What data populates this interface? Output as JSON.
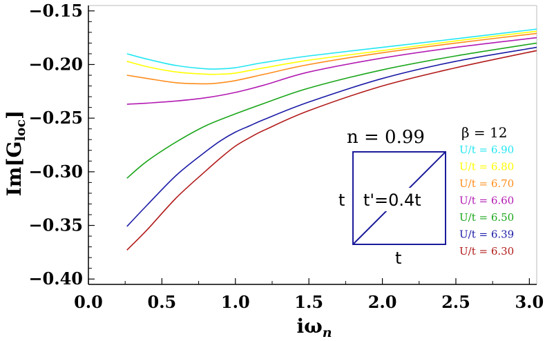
{
  "chart_data": {
    "type": "line",
    "xlabel": "iω",
    "xlabel_sub": "n",
    "ylabel": "Im[G",
    "ylabel_sub": "loc",
    "ylabel_close": "]",
    "xlim": [
      0.0,
      3.05
    ],
    "ylim": [
      -0.405,
      -0.145
    ],
    "xticks": [
      {
        "value": 0.0,
        "label": "0.0"
      },
      {
        "value": 0.5,
        "label": "0.5"
      },
      {
        "value": 1.0,
        "label": "1.0"
      },
      {
        "value": 1.5,
        "label": "1.5"
      },
      {
        "value": 2.0,
        "label": "2.0"
      },
      {
        "value": 2.5,
        "label": "2.5"
      },
      {
        "value": 3.0,
        "label": "3.0"
      }
    ],
    "yticks": [
      {
        "value": -0.15,
        "label": "−0.15"
      },
      {
        "value": -0.2,
        "label": "−0.20"
      },
      {
        "value": -0.25,
        "label": "−0.25"
      },
      {
        "value": -0.3,
        "label": "−0.30"
      },
      {
        "value": -0.35,
        "label": "−0.35"
      },
      {
        "value": -0.4,
        "label": "−0.40"
      }
    ],
    "grid": false,
    "legend_position": "right",
    "legend_title": "β = 12",
    "series": [
      {
        "name": "U/t = 6.90",
        "color": "#22e6f2",
        "x": [
          0.262,
          0.4,
          0.6,
          0.8,
          0.9,
          1.0,
          1.2,
          1.5,
          2.0,
          2.5,
          3.05
        ],
        "y": [
          -0.19,
          -0.195,
          -0.201,
          -0.204,
          -0.204,
          -0.203,
          -0.198,
          -0.192,
          -0.184,
          -0.176,
          -0.167
        ]
      },
      {
        "name": "U/t = 6.80",
        "color": "#ffff00",
        "x": [
          0.262,
          0.4,
          0.6,
          0.8,
          0.9,
          1.0,
          1.2,
          1.5,
          2.0,
          2.5,
          3.05
        ],
        "y": [
          -0.197,
          -0.202,
          -0.207,
          -0.209,
          -0.209,
          -0.208,
          -0.203,
          -0.196,
          -0.187,
          -0.178,
          -0.169
        ]
      },
      {
        "name": "U/t = 6.70",
        "color": "#ff8c1a",
        "x": [
          0.262,
          0.4,
          0.6,
          0.8,
          0.9,
          1.0,
          1.2,
          1.5,
          2.0,
          2.5,
          3.05
        ],
        "y": [
          -0.21,
          -0.213,
          -0.217,
          -0.218,
          -0.217,
          -0.215,
          -0.209,
          -0.2,
          -0.189,
          -0.18,
          -0.171
        ]
      },
      {
        "name": "U/t = 6.60",
        "color": "#b21ab2",
        "x": [
          0.262,
          0.4,
          0.6,
          0.8,
          1.0,
          1.2,
          1.5,
          2.0,
          2.5,
          3.05
        ],
        "y": [
          -0.237,
          -0.236,
          -0.234,
          -0.231,
          -0.226,
          -0.219,
          -0.207,
          -0.194,
          -0.184,
          -0.175
        ]
      },
      {
        "name": "U/t = 6.50",
        "color": "#1aa61a",
        "x": [
          0.262,
          0.4,
          0.6,
          0.8,
          1.0,
          1.2,
          1.5,
          2.0,
          2.5,
          3.05
        ],
        "y": [
          -0.306,
          -0.29,
          -0.272,
          -0.257,
          -0.246,
          -0.236,
          -0.222,
          -0.205,
          -0.192,
          -0.18
        ]
      },
      {
        "name": "U/t = 6.39",
        "color": "#1a1aa6",
        "x": [
          0.262,
          0.4,
          0.6,
          0.8,
          0.9,
          1.0,
          1.1,
          1.2,
          1.5,
          2.0,
          2.5,
          3.05
        ],
        "y": [
          -0.351,
          -0.331,
          -0.303,
          -0.281,
          -0.271,
          -0.263,
          -0.257,
          -0.251,
          -0.235,
          -0.213,
          -0.197,
          -0.184
        ]
      },
      {
        "name": "U/t = 6.30",
        "color": "#b21a1a",
        "x": [
          0.262,
          0.4,
          0.6,
          0.8,
          0.9,
          1.0,
          1.1,
          1.2,
          1.5,
          2.0,
          2.5,
          3.05
        ],
        "y": [
          -0.373,
          -0.354,
          -0.324,
          -0.299,
          -0.287,
          -0.276,
          -0.268,
          -0.261,
          -0.243,
          -0.22,
          -0.203,
          -0.187
        ]
      }
    ],
    "annotations": {
      "density_label": "n = 0.99",
      "hopping_side": "t",
      "hopping_bottom": "t",
      "diagonal_label": "t'=0.4t"
    }
  }
}
